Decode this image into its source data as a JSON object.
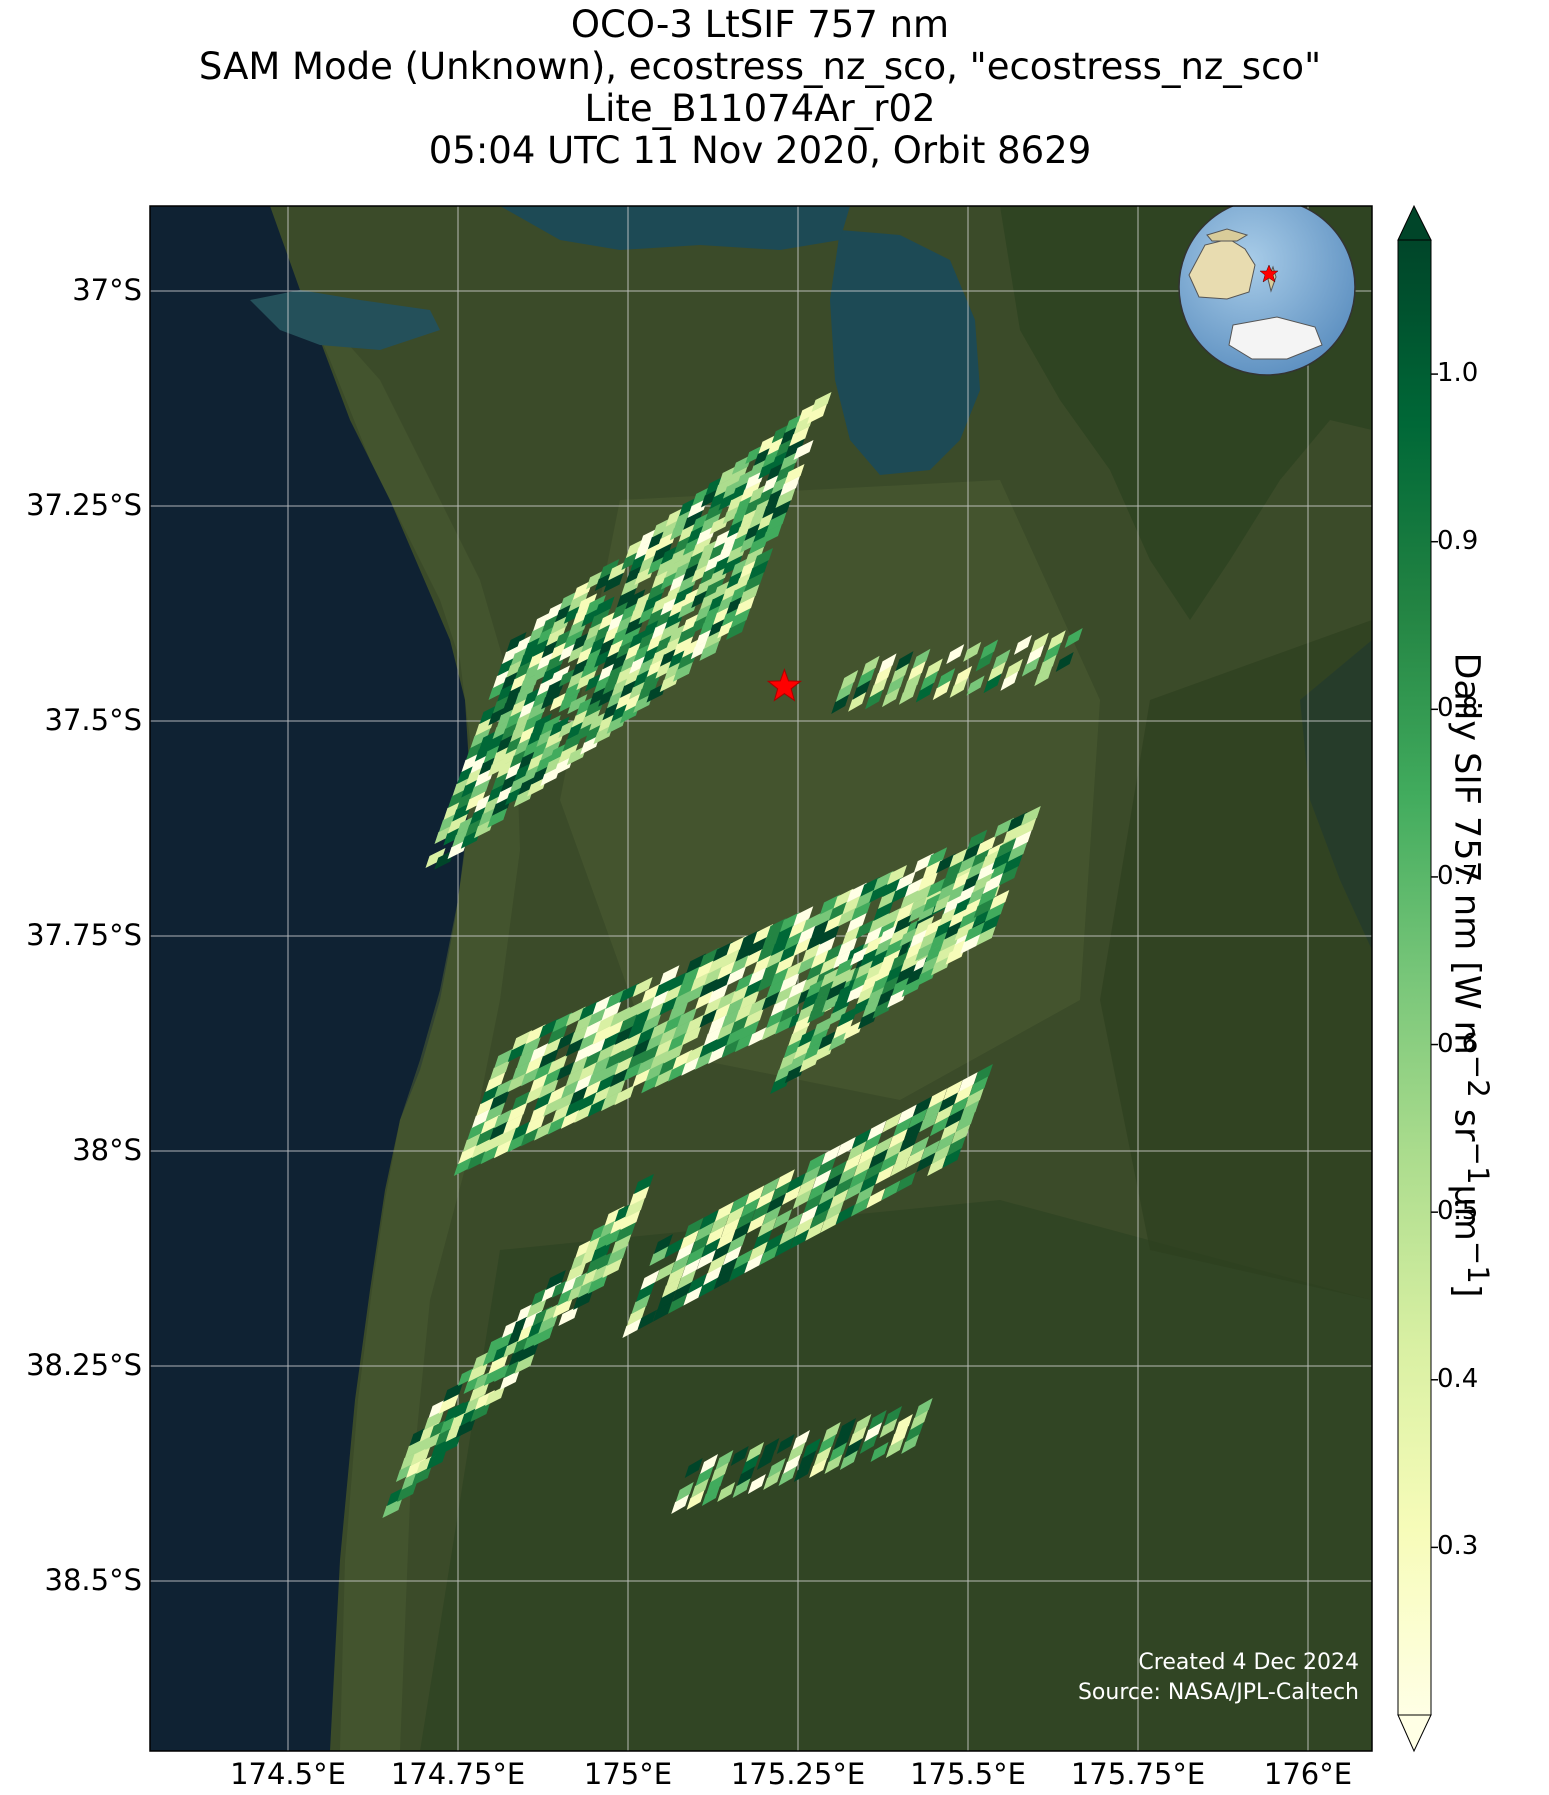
{
  "title": {
    "line1": "OCO-3 LtSIF 757 nm",
    "line2": "SAM Mode (Unknown), ecostress_nz_sco, \"ecostress_nz_sco\"",
    "line3": "Lite_B11074Ar_r02",
    "line4": "05:04 UTC 11 Nov 2020, Orbit 8629"
  },
  "axes": {
    "lat_labels": [
      "37°S",
      "37.25°S",
      "37.5°S",
      "37.75°S",
      "38°S",
      "38.25°S",
      "38.5°S"
    ],
    "lon_labels": [
      "174.5°E",
      "174.75°E",
      "175°E",
      "175.25°E",
      "175.5°E",
      "175.75°E",
      "176°E"
    ]
  },
  "colorbar": {
    "title_main": "Daily SIF 757 nm [W m",
    "sup1": "−2",
    "mid1": " sr",
    "sup2": "−1",
    "mid2": "μm",
    "sup3": "−1",
    "end": "]",
    "ticks": [
      "1.0",
      "0.9",
      "0.8",
      "0.7",
      "0.6",
      "0.5",
      "0.4",
      "0.3"
    ],
    "range": [
      0.2,
      1.08
    ],
    "colors": [
      "#ffffe5",
      "#f7fcb9",
      "#d9f0a3",
      "#addd8e",
      "#78c679",
      "#41ab5d",
      "#238443",
      "#006837",
      "#004529"
    ]
  },
  "target": {
    "lat": -37.46,
    "lon": 175.23,
    "marker": "star-icon",
    "color": "#ff0000"
  },
  "credit": {
    "line1": "Created 4 Dec 2024",
    "line2": "Source: NASA/JPL-Caltech"
  },
  "colors": {
    "ocean": "#0f2233",
    "land": "#3a4a28",
    "grid": "#d0d0d0"
  }
}
